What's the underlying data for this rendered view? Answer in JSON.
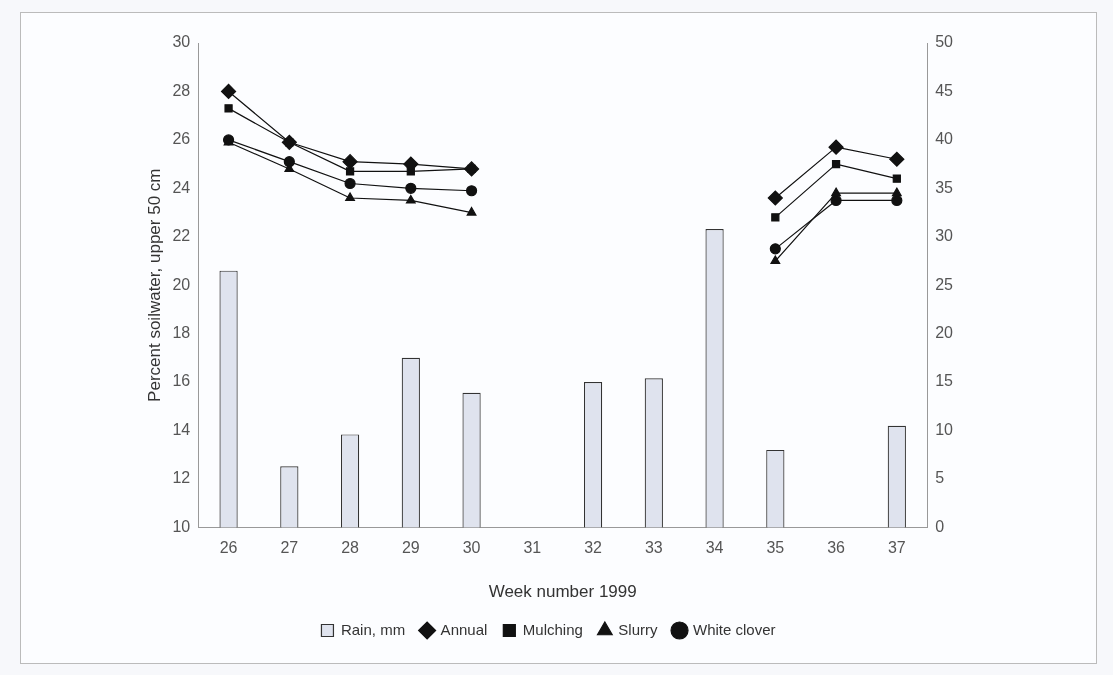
{
  "chart_data": {
    "type": "line",
    "xlabel": "Week number 1999",
    "ylabel": "Percent soilwater, upper 50 cm",
    "categories": [
      "26",
      "27",
      "28",
      "29",
      "30",
      "31",
      "32",
      "33",
      "34",
      "35",
      "36",
      "37"
    ],
    "series": [
      {
        "name": "Rain, mm",
        "type": "bar",
        "axis": "y2",
        "color": "#dfe3ee",
        "values": [
          26.5,
          6.3,
          9.6,
          17.5,
          13.9,
          null,
          15,
          15.4,
          30.8,
          8,
          null,
          10.5
        ]
      },
      {
        "name": "Annual",
        "color": "#111111",
        "marker": "diamond",
        "values": [
          28.0,
          25.9,
          25.1,
          25.0,
          24.8,
          null,
          null,
          null,
          null,
          23.6,
          25.7,
          25.2
        ]
      },
      {
        "name": "Mulching",
        "color": "#111111",
        "marker": "square",
        "values": [
          27.3,
          25.9,
          24.7,
          24.7,
          24.8,
          null,
          null,
          null,
          null,
          22.8,
          25.0,
          24.4
        ]
      },
      {
        "name": "Slurry",
        "color": "#111111",
        "marker": "triangle",
        "values": [
          25.9,
          24.8,
          23.6,
          23.5,
          23.0,
          null,
          null,
          null,
          null,
          21.0,
          23.8,
          23.8
        ]
      },
      {
        "name": "White clover",
        "color": "#111111",
        "marker": "circle",
        "values": [
          26.0,
          25.1,
          24.2,
          24.0,
          23.9,
          null,
          null,
          null,
          null,
          21.5,
          23.5,
          23.5
        ]
      }
    ],
    "ylim": [
      10,
      30
    ],
    "yticks": [
      10,
      12,
      14,
      16,
      18,
      20,
      22,
      24,
      26,
      28,
      30
    ],
    "y2lim": [
      0,
      50
    ],
    "y2ticks": [
      0,
      5,
      10,
      15,
      20,
      25,
      30,
      35,
      40,
      45,
      50
    ],
    "legend": "bottom",
    "grid": false
  }
}
